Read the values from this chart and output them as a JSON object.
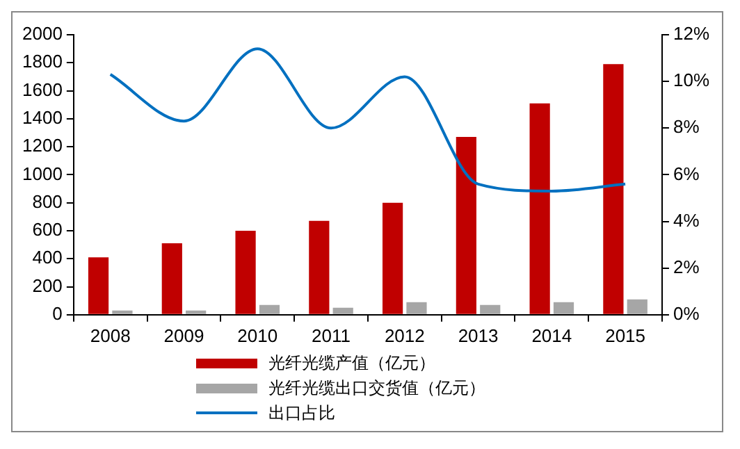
{
  "chart_data": {
    "type": "bar",
    "categories": [
      "2008",
      "2009",
      "2010",
      "2011",
      "2012",
      "2013",
      "2014",
      "2015"
    ],
    "series": [
      {
        "name": "光纤光缆产值（亿元）",
        "color": "#c00000",
        "values": [
          410,
          510,
          600,
          670,
          800,
          1270,
          1510,
          1790
        ]
      },
      {
        "name": "光纤光缆出口交货值（亿元）",
        "color": "#a6a6a6",
        "values": [
          30,
          30,
          70,
          50,
          90,
          70,
          90,
          110
        ]
      },
      {
        "name": "出口占比",
        "type": "line",
        "axis": "y2",
        "color": "#0070c0",
        "values": [
          10.3,
          8.3,
          11.4,
          8.0,
          10.2,
          5.6,
          5.3,
          5.6
        ]
      }
    ],
    "ylim": [
      0,
      2000
    ],
    "yticks": [
      0,
      200,
      400,
      600,
      800,
      1000,
      1200,
      1400,
      1600,
      1800,
      2000
    ],
    "y2lim": [
      0,
      12
    ],
    "y2ticks": [
      {
        "value": 0,
        "label": "0%"
      },
      {
        "value": 2,
        "label": "2%"
      },
      {
        "value": 4,
        "label": "4%"
      },
      {
        "value": 6,
        "label": "6%"
      },
      {
        "value": 8,
        "label": "8%"
      },
      {
        "value": 10,
        "label": "10%"
      },
      {
        "value": 12,
        "label": "12%"
      }
    ],
    "grid": false,
    "legend": "bottom",
    "marker": "none"
  }
}
